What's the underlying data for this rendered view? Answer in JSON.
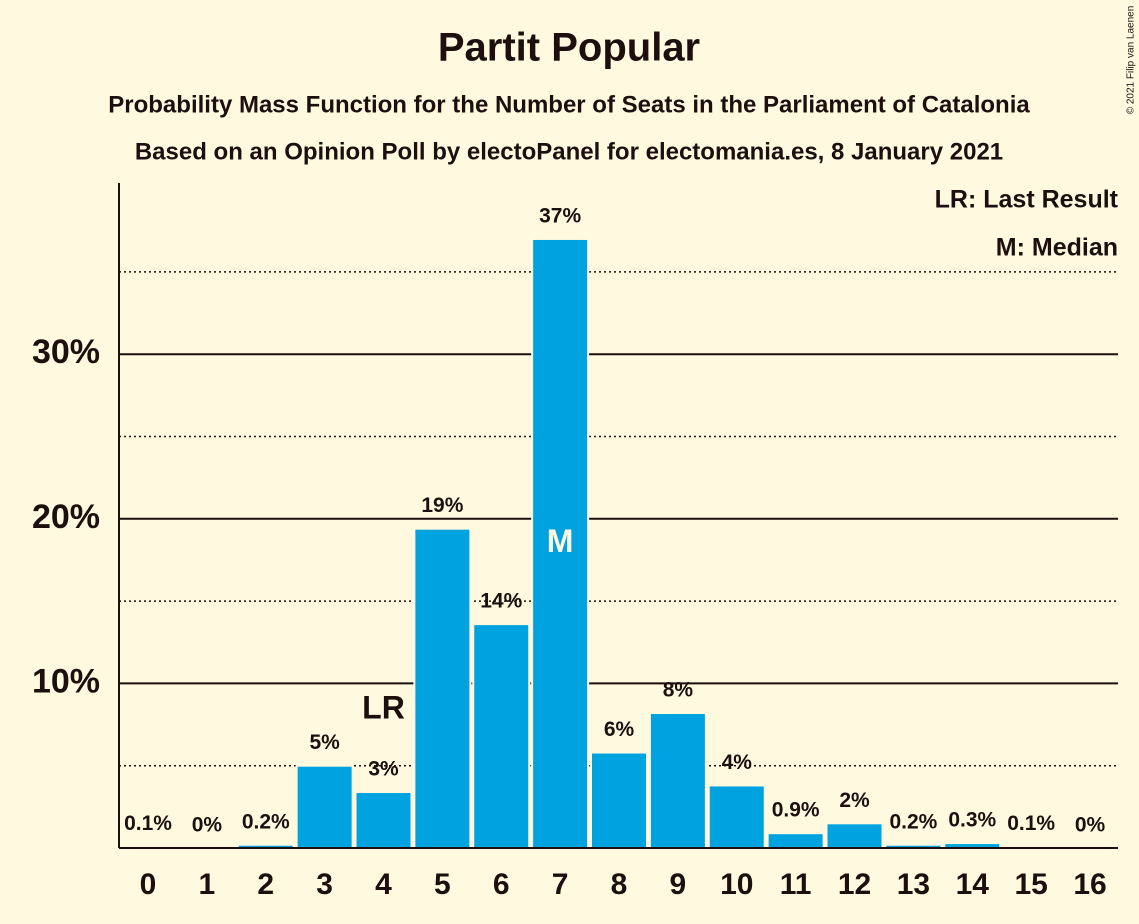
{
  "chart_data": {
    "type": "bar",
    "title": "Partit Popular",
    "subtitles": [
      "Probability Mass Function for the Number of Seats in the Parliament of Catalonia",
      "Based on an Opinion Poll by electoPanel for electomania.es, 8 January 2021"
    ],
    "categories": [
      0,
      1,
      2,
      3,
      4,
      5,
      6,
      7,
      8,
      9,
      10,
      11,
      12,
      13,
      14,
      15,
      16
    ],
    "values": [
      0.1,
      0,
      0.2,
      5,
      3.4,
      19.4,
      13.6,
      37,
      5.8,
      8.2,
      3.8,
      0.9,
      1.5,
      0.2,
      0.3,
      0.1,
      0
    ],
    "value_labels": [
      "0.1%",
      "0%",
      "0.2%",
      "5%",
      "3%",
      "19%",
      "14%",
      "37%",
      "6%",
      "8%",
      "4%",
      "0.9%",
      "2%",
      "0.2%",
      "0.3%",
      "0.1%",
      "0%"
    ],
    "color": "#00a2e0",
    "ylim": [
      0,
      40.4
    ],
    "yticks": [
      {
        "value": 10,
        "label": "10%"
      },
      {
        "value": 20,
        "label": "20%"
      },
      {
        "value": 30,
        "label": "30%"
      }
    ],
    "minor_yticks": [
      5,
      15,
      25,
      35
    ],
    "grid": true,
    "annotations": [
      {
        "label": "LR",
        "at": 4,
        "place": "above"
      },
      {
        "label": "M",
        "at": 7,
        "place": "inside"
      }
    ],
    "legend": [
      "LR: Last Result",
      "M: Median"
    ],
    "legend_position": "top-right",
    "credit": "© 2021 Filip van Laenen"
  }
}
